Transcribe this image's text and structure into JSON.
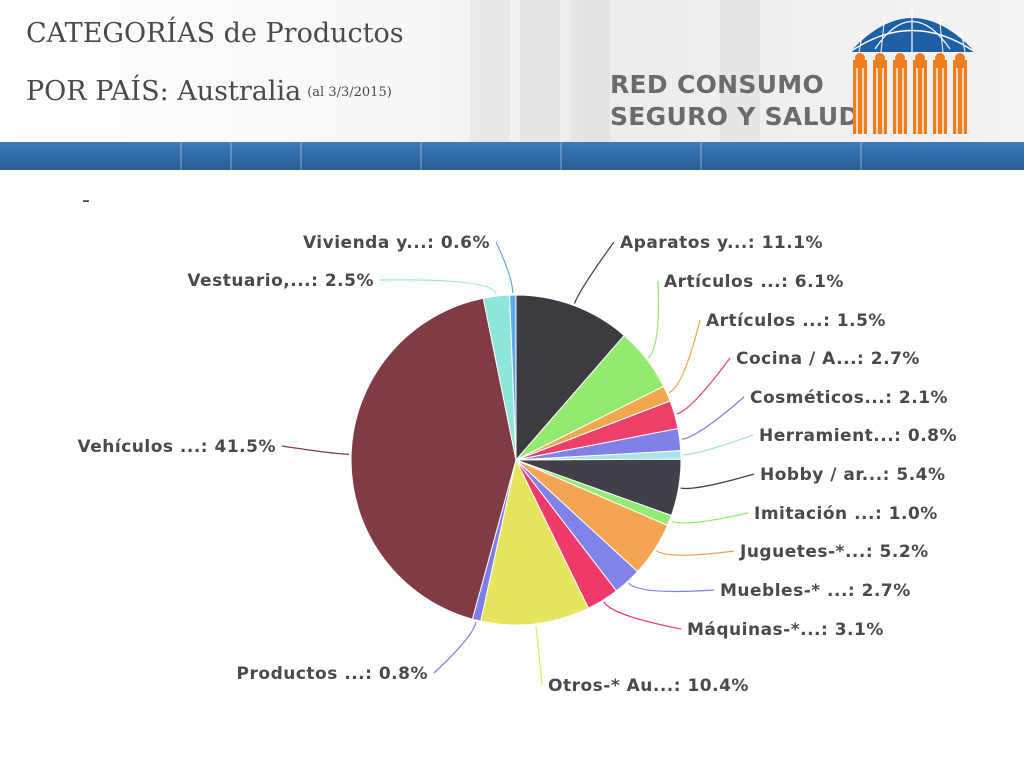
{
  "header": {
    "title_line1": "CATEGORÍAS de Productos",
    "title_line2": "POR PAÍS: Australia",
    "date_note": "(al 3/3/2015)",
    "brand_line1": "RED CONSUMO",
    "brand_line2": "SEGURO Y SALUD",
    "logo_icon": "umbrella-people-logo-icon",
    "logo_colors": {
      "umbrella": "#1f5fa8",
      "people": "#f07d1e"
    }
  },
  "dash": "-",
  "chart_data": {
    "type": "pie",
    "slices": [
      {
        "label": "Aparatos y...: 11.1%",
        "value": 11.1,
        "color": "#3b3b41"
      },
      {
        "label": "Artículos ...: 6.1%",
        "value": 6.1,
        "color": "#92ea6f"
      },
      {
        "label": "Artículos ...: 1.5%",
        "value": 1.5,
        "color": "#f2a64d"
      },
      {
        "label": "Cocina / A...: 2.7%",
        "value": 2.7,
        "color": "#ec3f6a"
      },
      {
        "label": "Cosméticos...: 2.1%",
        "value": 2.1,
        "color": "#8080e6"
      },
      {
        "label": "Herramient...: 0.8%",
        "value": 0.8,
        "color": "#a8e3e8"
      },
      {
        "label": "Hobby / ar...: 5.4%",
        "value": 5.4,
        "color": "#404048"
      },
      {
        "label": "Imitación ...: 1.0%",
        "value": 1.0,
        "color": "#90ec73"
      },
      {
        "label": "Juguetes-*...: 5.2%",
        "value": 5.2,
        "color": "#f4a452"
      },
      {
        "label": "Muebles-* ...: 2.7%",
        "value": 2.7,
        "color": "#7f83ea"
      },
      {
        "label": "Máquinas-*...: 3.1%",
        "value": 3.1,
        "color": "#ef3a6b"
      },
      {
        "label": "Otros-* Au...: 10.4%",
        "value": 10.4,
        "color": "#e6e55e"
      },
      {
        "label": "Productos ...: 0.8%",
        "value": 0.8,
        "color": "#7a7ee6"
      },
      {
        "label": "Vehículos ...: 41.5%",
        "value": 41.5,
        "color": "#813b45"
      },
      {
        "label": "Vestuario,...: 2.5%",
        "value": 2.5,
        "color": "#8fe6dd"
      },
      {
        "label": "Vivienda y...: 0.6%",
        "value": 0.6,
        "color": "#5da9ea"
      }
    ]
  }
}
